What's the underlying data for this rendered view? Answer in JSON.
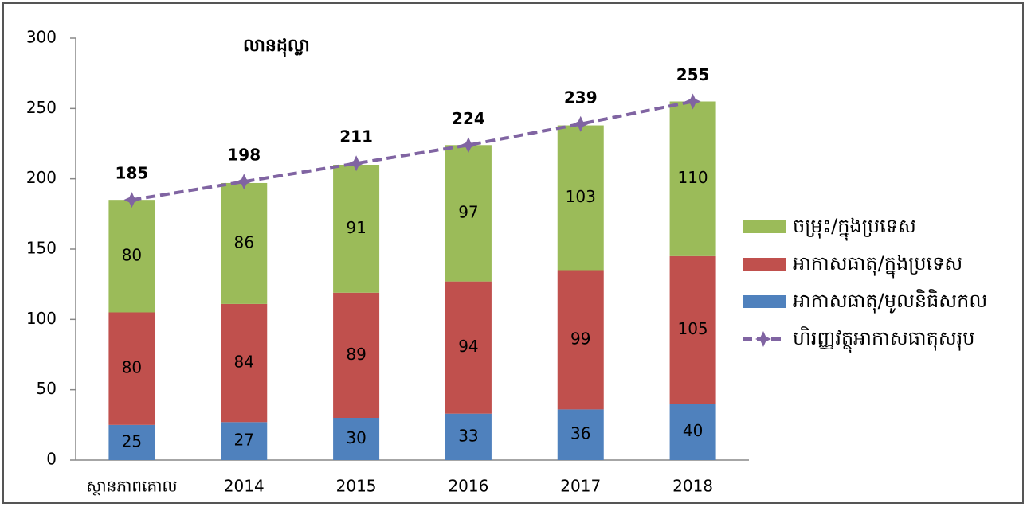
{
  "chart_data": {
    "type": "bar",
    "stacked": true,
    "title": "លានដុល្លា",
    "categories": [
      "ស្ថានភាពគោល",
      "2014",
      "2015",
      "2016",
      "2017",
      "2018"
    ],
    "series": [
      {
        "name": "អាកាសធាតុ/មូលនិធិសកល",
        "color": "#4f81bd",
        "values": [
          25,
          27,
          30,
          33,
          36,
          40
        ]
      },
      {
        "name": "អាកាសធាតុ/ក្នុងប្រទេស",
        "color": "#c0504d",
        "values": [
          80,
          84,
          89,
          94,
          99,
          105
        ]
      },
      {
        "name": "ចម្រុះ/ក្នុងប្រទេស",
        "color": "#9bbb59",
        "values": [
          80,
          86,
          91,
          97,
          103,
          110
        ]
      },
      {
        "name": "ហិរញ្ញវត្ថុអាកាសធាតុសរុប",
        "type": "line",
        "color": "#8064a2",
        "values": [
          185,
          198,
          211,
          224,
          239,
          255
        ]
      }
    ],
    "ylim": [
      0,
      300
    ],
    "yticks": [
      0,
      50,
      100,
      150,
      200,
      250,
      300
    ],
    "grid": false,
    "legend": "right"
  }
}
